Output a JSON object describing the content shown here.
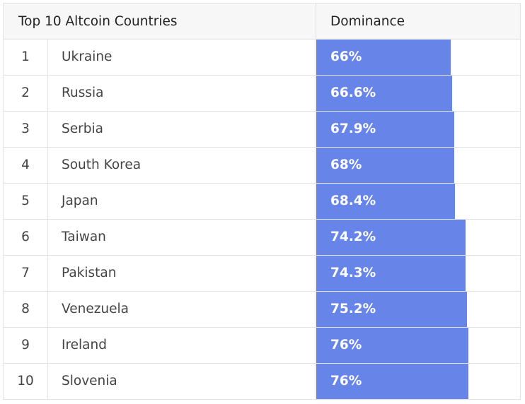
{
  "header": {
    "title": "Top 10 Altcoin Countries",
    "dominance": "Dominance"
  },
  "colors": {
    "bar": "#6785e8",
    "header_bg": "#f7f7f7",
    "border": "#e3e3e3"
  },
  "chart_data": {
    "type": "table",
    "title": "Top 10 Altcoin Countries",
    "columns": [
      "Top 10 Altcoin Countries",
      "Dominance"
    ],
    "rows": [
      {
        "rank": "1",
        "country": "Ukraine",
        "value": 66,
        "label": "66%"
      },
      {
        "rank": "2",
        "country": "Russia",
        "value": 66.6,
        "label": "66.6%"
      },
      {
        "rank": "3",
        "country": "Serbia",
        "value": 67.9,
        "label": "67.9%"
      },
      {
        "rank": "4",
        "country": "South Korea",
        "value": 68,
        "label": "68%"
      },
      {
        "rank": "5",
        "country": "Japan",
        "value": 68.4,
        "label": "68.4%"
      },
      {
        "rank": "6",
        "country": "Taiwan",
        "value": 74.2,
        "label": "74.2%"
      },
      {
        "rank": "7",
        "country": "Pakistan",
        "value": 74.3,
        "label": "74.3%"
      },
      {
        "rank": "8",
        "country": "Venezuela",
        "value": 75.2,
        "label": "75.2%"
      },
      {
        "rank": "9",
        "country": "Ireland",
        "value": 76,
        "label": "76%"
      },
      {
        "rank": "10",
        "country": "Slovenia",
        "value": 76,
        "label": "76%"
      }
    ]
  }
}
